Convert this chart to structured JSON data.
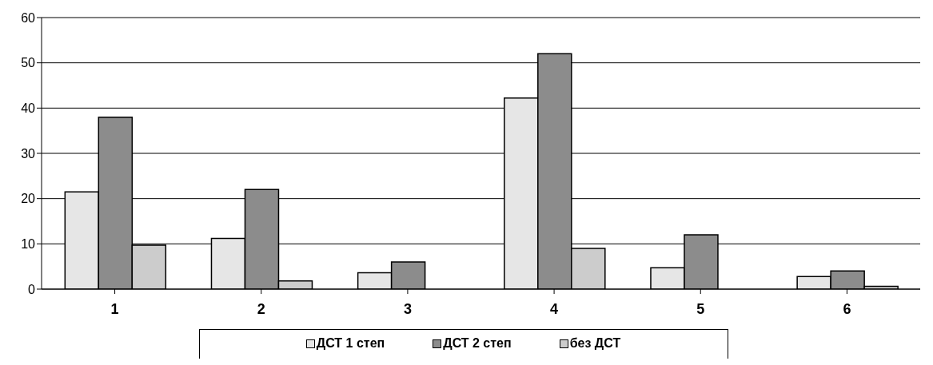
{
  "chart_data": {
    "type": "bar",
    "categories": [
      "1",
      "2",
      "3",
      "4",
      "5",
      "6"
    ],
    "series": [
      {
        "name": "ДСТ 1 степ",
        "color": "#e6e6e6",
        "values": [
          21.5,
          11.2,
          3.6,
          42.2,
          4.7,
          2.8
        ]
      },
      {
        "name": "ДСТ 2 степ",
        "color": "#8c8c8c",
        "values": [
          38,
          22,
          6,
          52,
          12,
          4
        ]
      },
      {
        "name": "без ДСТ",
        "color": "#cccccc",
        "values": [
          9.7,
          1.8,
          0,
          9,
          0,
          0.6
        ]
      }
    ],
    "ylim": [
      0,
      60
    ],
    "yticks": [
      0,
      10,
      20,
      30,
      40,
      50,
      60
    ],
    "grid": "y",
    "legend": "bottom"
  }
}
